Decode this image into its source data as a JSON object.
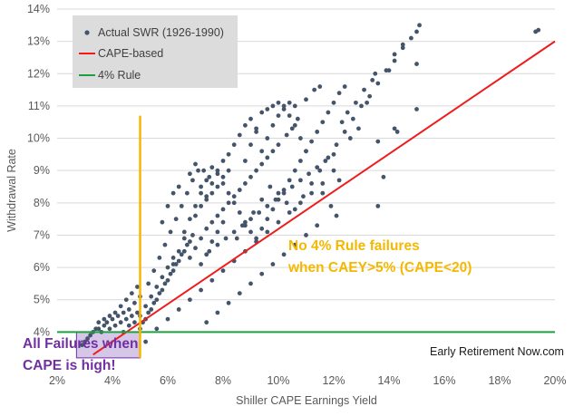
{
  "chart_data": {
    "type": "scatter",
    "xlabel": "Shiller CAPE Earnings Yield",
    "ylabel": "Withdrawal Rate",
    "xlim": [
      2,
      20
    ],
    "ylim": [
      3,
      14
    ],
    "x_ticks": [
      "2%",
      "4%",
      "6%",
      "8%",
      "10%",
      "12%",
      "14%",
      "16%",
      "18%",
      "20%"
    ],
    "y_ticks": [
      "4%",
      "5%",
      "6%",
      "7%",
      "8%",
      "9%",
      "10%",
      "11%",
      "12%",
      "13%",
      "14%"
    ],
    "legend": {
      "position": "top-left",
      "entries": [
        {
          "label": "Actual SWR (1926-1990)",
          "type": "marker",
          "color": "#44546a"
        },
        {
          "label": "CAPE-based",
          "type": "line",
          "color": "#ee1c1c"
        },
        {
          "label": "4% Rule",
          "type": "line",
          "color": "#1fa040"
        }
      ]
    },
    "series": [
      {
        "name": "Actual SWR (1926-1990)",
        "type": "scatter",
        "color": "#44546a",
        "points": [
          [
            2.9,
            3.6
          ],
          [
            3.0,
            3.7
          ],
          [
            3.1,
            3.8
          ],
          [
            3.2,
            3.9
          ],
          [
            3.3,
            4.0
          ],
          [
            3.4,
            4.1
          ],
          [
            3.5,
            4.1
          ],
          [
            3.5,
            4.3
          ],
          [
            3.6,
            4.0
          ],
          [
            3.7,
            4.2
          ],
          [
            3.7,
            4.4
          ],
          [
            3.8,
            4.3
          ],
          [
            3.9,
            4.1
          ],
          [
            3.9,
            4.5
          ],
          [
            4.0,
            4.4
          ],
          [
            4.1,
            4.2
          ],
          [
            4.1,
            4.6
          ],
          [
            4.2,
            4.5
          ],
          [
            4.3,
            4.3
          ],
          [
            4.3,
            4.8
          ],
          [
            4.4,
            4.6
          ],
          [
            4.5,
            4.4
          ],
          [
            4.5,
            5.0
          ],
          [
            4.6,
            4.7
          ],
          [
            4.7,
            4.5
          ],
          [
            4.7,
            5.2
          ],
          [
            4.8,
            4.9
          ],
          [
            4.9,
            4.6
          ],
          [
            4.9,
            5.4
          ],
          [
            5.0,
            5.1
          ],
          [
            5.0,
            4.1
          ],
          [
            5.1,
            4.3
          ],
          [
            5.2,
            4.4
          ],
          [
            5.3,
            4.6
          ],
          [
            5.4,
            4.7
          ],
          [
            5.5,
            4.9
          ],
          [
            5.6,
            5.0
          ],
          [
            5.7,
            5.2
          ],
          [
            5.8,
            5.3
          ],
          [
            5.9,
            5.5
          ],
          [
            6.0,
            5.6
          ],
          [
            6.1,
            5.8
          ],
          [
            6.2,
            5.9
          ],
          [
            6.3,
            6.1
          ],
          [
            6.4,
            6.2
          ],
          [
            6.5,
            6.4
          ],
          [
            6.6,
            6.5
          ],
          [
            6.7,
            6.7
          ],
          [
            6.8,
            6.8
          ],
          [
            6.9,
            7.0
          ],
          [
            5.3,
            5.5
          ],
          [
            5.5,
            5.9
          ],
          [
            5.7,
            6.3
          ],
          [
            5.9,
            6.7
          ],
          [
            6.1,
            7.1
          ],
          [
            6.3,
            7.5
          ],
          [
            6.5,
            7.9
          ],
          [
            6.7,
            8.3
          ],
          [
            6.9,
            8.7
          ],
          [
            7.1,
            9.0
          ],
          [
            7.3,
            9.0
          ],
          [
            7.5,
            8.8
          ],
          [
            5.8,
            7.4
          ],
          [
            6.0,
            7.9
          ],
          [
            6.2,
            8.3
          ],
          [
            6.4,
            8.5
          ],
          [
            6.8,
            8.9
          ],
          [
            7.0,
            9.2
          ],
          [
            7.2,
            8.5
          ],
          [
            7.4,
            8.2
          ],
          [
            7.6,
            8.6
          ],
          [
            7.8,
            9.0
          ],
          [
            8.0,
            9.3
          ],
          [
            8.2,
            9.0
          ],
          [
            7.0,
            7.6
          ],
          [
            7.2,
            7.9
          ],
          [
            7.4,
            8.1
          ],
          [
            7.6,
            8.3
          ],
          [
            7.8,
            8.5
          ],
          [
            8.0,
            8.8
          ],
          [
            8.2,
            9.5
          ],
          [
            8.4,
            9.8
          ],
          [
            8.6,
            10.1
          ],
          [
            8.8,
            10.4
          ],
          [
            9.0,
            10.6
          ],
          [
            9.2,
            10.2
          ],
          [
            9.4,
            10.8
          ],
          [
            9.6,
            10.9
          ],
          [
            9.8,
            11.0
          ],
          [
            10.0,
            11.1
          ],
          [
            10.2,
            10.9
          ],
          [
            10.4,
            10.7
          ],
          [
            10.6,
            10.4
          ],
          [
            10.8,
            10.0
          ],
          [
            11.0,
            9.6
          ],
          [
            7.2,
            6.9
          ],
          [
            7.4,
            7.2
          ],
          [
            7.6,
            7.4
          ],
          [
            7.8,
            7.6
          ],
          [
            8.0,
            7.8
          ],
          [
            8.2,
            8.0
          ],
          [
            8.4,
            8.2
          ],
          [
            8.6,
            8.4
          ],
          [
            8.8,
            8.6
          ],
          [
            9.0,
            8.8
          ],
          [
            9.2,
            9.0
          ],
          [
            9.4,
            9.2
          ],
          [
            9.6,
            9.4
          ],
          [
            9.8,
            9.6
          ],
          [
            10.0,
            9.8
          ],
          [
            7.5,
            6.5
          ],
          [
            7.8,
            6.7
          ],
          [
            8.1,
            6.9
          ],
          [
            8.4,
            7.1
          ],
          [
            8.7,
            7.3
          ],
          [
            9.0,
            7.5
          ],
          [
            9.3,
            7.7
          ],
          [
            9.6,
            7.9
          ],
          [
            9.9,
            8.1
          ],
          [
            10.2,
            8.3
          ],
          [
            10.5,
            8.5
          ],
          [
            10.8,
            8.7
          ],
          [
            11.1,
            8.9
          ],
          [
            11.4,
            9.1
          ],
          [
            11.7,
            9.3
          ],
          [
            12.0,
            9.5
          ],
          [
            8.5,
            6.9
          ],
          [
            8.8,
            7.3
          ],
          [
            9.1,
            7.7
          ],
          [
            9.4,
            8.1
          ],
          [
            9.7,
            8.5
          ],
          [
            10.0,
            8.3
          ],
          [
            10.3,
            8.0
          ],
          [
            10.6,
            7.8
          ],
          [
            10.9,
            8.2
          ],
          [
            11.2,
            8.6
          ],
          [
            11.5,
            9.0
          ],
          [
            11.8,
            9.4
          ],
          [
            12.1,
            9.8
          ],
          [
            12.4,
            10.2
          ],
          [
            12.7,
            10.6
          ],
          [
            13.0,
            11.0
          ],
          [
            13.3,
            11.3
          ],
          [
            13.6,
            11.7
          ],
          [
            13.9,
            12.1
          ],
          [
            14.2,
            12.4
          ],
          [
            14.5,
            12.8
          ],
          [
            14.8,
            13.1
          ],
          [
            15.0,
            13.3
          ],
          [
            15.1,
            13.5
          ],
          [
            11.5,
            11.6
          ],
          [
            11.3,
            11.5
          ],
          [
            11.0,
            11.2
          ],
          [
            10.7,
            10.6
          ],
          [
            10.5,
            10.3
          ],
          [
            10.3,
            10.1
          ],
          [
            12.3,
            10.5
          ],
          [
            12.5,
            10.8
          ],
          [
            12.8,
            11.1
          ],
          [
            13.1,
            11.5
          ],
          [
            13.4,
            11.8
          ],
          [
            13.5,
            12.0
          ],
          [
            14.2,
            10.3
          ],
          [
            14.3,
            10.2
          ],
          [
            15.0,
            10.9
          ],
          [
            13.8,
            8.8
          ],
          [
            13.6,
            7.9
          ],
          [
            12.0,
            9.0
          ],
          [
            12.2,
            8.7
          ],
          [
            11.6,
            8.3
          ],
          [
            11.9,
            7.9
          ],
          [
            12.1,
            7.6
          ],
          [
            11.4,
            7.3
          ],
          [
            11.0,
            7.0
          ],
          [
            10.6,
            6.7
          ],
          [
            10.2,
            6.4
          ],
          [
            9.8,
            6.1
          ],
          [
            9.4,
            5.8
          ],
          [
            9.0,
            5.5
          ],
          [
            8.6,
            5.2
          ],
          [
            8.2,
            4.9
          ],
          [
            7.8,
            4.6
          ],
          [
            7.4,
            4.3
          ],
          [
            5.2,
            3.7
          ],
          [
            5.6,
            4.1
          ],
          [
            6.0,
            4.4
          ],
          [
            6.4,
            4.7
          ],
          [
            6.8,
            5.0
          ],
          [
            7.2,
            5.3
          ],
          [
            7.6,
            5.6
          ],
          [
            8.0,
            5.9
          ],
          [
            8.4,
            6.2
          ],
          [
            8.8,
            6.5
          ],
          [
            9.2,
            6.8
          ],
          [
            9.6,
            7.1
          ],
          [
            10.0,
            7.4
          ],
          [
            10.4,
            7.7
          ],
          [
            10.8,
            8.0
          ],
          [
            11.2,
            8.3
          ],
          [
            11.6,
            8.6
          ],
          [
            8.8,
            9.3
          ],
          [
            9.0,
            9.8
          ],
          [
            9.2,
            10.3
          ],
          [
            9.4,
            9.6
          ],
          [
            9.6,
            10.0
          ],
          [
            9.8,
            10.4
          ],
          [
            10.0,
            10.7
          ],
          [
            10.2,
            11.0
          ],
          [
            10.4,
            11.1
          ],
          [
            10.6,
            11.0
          ],
          [
            6.6,
            7.1
          ],
          [
            6.8,
            7.5
          ],
          [
            7.0,
            7.9
          ],
          [
            7.2,
            8.3
          ],
          [
            7.4,
            8.7
          ],
          [
            7.6,
            9.1
          ],
          [
            7.8,
            8.9
          ],
          [
            8.0,
            8.6
          ],
          [
            8.2,
            8.3
          ],
          [
            8.4,
            8.0
          ],
          [
            8.6,
            7.7
          ],
          [
            8.8,
            7.4
          ],
          [
            9.0,
            7.1
          ],
          [
            9.2,
            6.9
          ],
          [
            9.4,
            7.2
          ],
          [
            9.6,
            7.5
          ],
          [
            9.8,
            7.8
          ],
          [
            10.0,
            8.1
          ],
          [
            10.2,
            8.4
          ],
          [
            10.4,
            8.7
          ],
          [
            10.6,
            9.0
          ],
          [
            10.8,
            9.3
          ],
          [
            11.0,
            9.6
          ],
          [
            11.2,
            9.9
          ],
          [
            11.4,
            10.2
          ],
          [
            11.6,
            10.5
          ],
          [
            11.8,
            10.8
          ],
          [
            12.0,
            11.1
          ],
          [
            12.2,
            11.4
          ],
          [
            12.4,
            11.6
          ],
          [
            6.2,
            6.1
          ],
          [
            6.4,
            6.5
          ],
          [
            6.6,
            6.9
          ],
          [
            6.8,
            6.3
          ],
          [
            7.0,
            6.6
          ],
          [
            7.2,
            6.1
          ],
          [
            7.4,
            6.4
          ],
          [
            7.6,
            6.8
          ],
          [
            7.8,
            7.1
          ],
          [
            8.0,
            7.4
          ],
          [
            4.4,
            4.0
          ],
          [
            4.6,
            4.2
          ],
          [
            4.8,
            4.3
          ],
          [
            5.0,
            4.5
          ],
          [
            5.2,
            4.8
          ],
          [
            5.4,
            5.1
          ],
          [
            5.6,
            5.4
          ],
          [
            5.8,
            5.7
          ],
          [
            6.0,
            6.0
          ],
          [
            6.2,
            6.3
          ],
          [
            19.3,
            13.3
          ],
          [
            19.4,
            13.35
          ],
          [
            14.2,
            12.6
          ],
          [
            14.5,
            12.9
          ],
          [
            14.0,
            12.1
          ],
          [
            13.2,
            11.1
          ],
          [
            12.9,
            10.3
          ],
          [
            12.6,
            10.0
          ],
          [
            15.0,
            12.3
          ],
          [
            13.6,
            9.9
          ]
        ]
      },
      {
        "name": "CAPE-based",
        "type": "line",
        "color": "#ee1c1c",
        "points": [
          [
            3.3,
            3.3
          ],
          [
            20,
            13.0
          ]
        ]
      },
      {
        "name": "4% Rule",
        "type": "line",
        "color": "#1fa040",
        "points": [
          [
            2,
            4
          ],
          [
            20,
            4
          ]
        ]
      }
    ],
    "annotations": {
      "threshold_line": {
        "x": 5,
        "y_range": [
          3.2,
          10.7
        ],
        "color": "#f5b800"
      },
      "failure_box": {
        "x_range": [
          2.7,
          5.0
        ],
        "y_range": [
          3.2,
          4.0
        ],
        "color": "#c8b4e0"
      },
      "no_failures_text": [
        "No 4% Rule failures",
        "when CAEY>5% (CAPE<20)"
      ],
      "failures_text": [
        "All Failures when",
        "CAPE is high!"
      ],
      "credit": "Early Retirement Now.com"
    }
  }
}
